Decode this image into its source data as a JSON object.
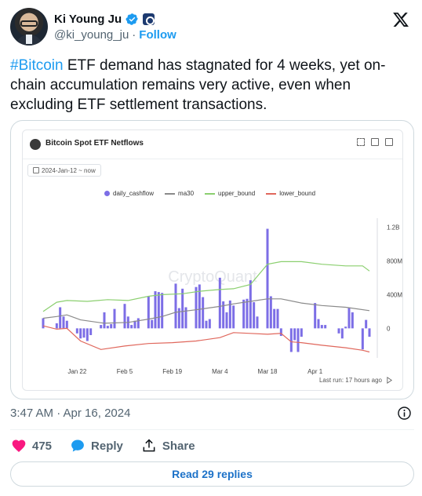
{
  "author": {
    "name": "Ki Young Ju",
    "handle": "@ki_young_ju",
    "separator": "·",
    "follow_label": "Follow"
  },
  "tweet": {
    "hashtag": "#Bitcoin",
    "text": " ETF demand has stagnated for 4 weeks, yet on-chain accumulation remains very active, even when excluding ETF settlement transactions."
  },
  "chart_card": {
    "title": "Bitcoin Spot ETF Netflows",
    "date_range": "2024-Jan-12 ~ now",
    "watermark": "CryptoQuant",
    "last_run": "Last run: 17 hours ago"
  },
  "chart_data": {
    "type": "bar",
    "title": "Bitcoin Spot ETF Netflows",
    "x_ticks": [
      "Jan 22",
      "Feb 5",
      "Feb 19",
      "Mar 4",
      "Mar 18",
      "Apr 1"
    ],
    "y_ticks": [
      "1.2B",
      "800M",
      "400M",
      "0"
    ],
    "ylim": [
      -350000000,
      1250000000
    ],
    "legend_position": "top",
    "colors": {
      "daily_cashflow": "#7c6ee6",
      "ma30": "#8a8a8a",
      "upper_bound": "#8bcf6f",
      "lower_bound": "#e0675c"
    },
    "series": [
      {
        "name": "daily_cashflow",
        "kind": "bar",
        "points": [
          [
            "2024-01-12",
            120000000
          ],
          [
            "2024-01-16",
            60000000
          ],
          [
            "2024-01-17",
            250000000
          ],
          [
            "2024-01-18",
            140000000
          ],
          [
            "2024-01-19",
            90000000
          ],
          [
            "2024-01-22",
            -60000000
          ],
          [
            "2024-01-23",
            -120000000
          ],
          [
            "2024-01-24",
            -110000000
          ],
          [
            "2024-01-25",
            -150000000
          ],
          [
            "2024-01-26",
            -80000000
          ],
          [
            "2024-01-29",
            40000000
          ],
          [
            "2024-01-30",
            190000000
          ],
          [
            "2024-01-31",
            30000000
          ],
          [
            "2024-02-01",
            50000000
          ],
          [
            "2024-02-02",
            230000000
          ],
          [
            "2024-02-05",
            290000000
          ],
          [
            "2024-02-06",
            140000000
          ],
          [
            "2024-02-07",
            40000000
          ],
          [
            "2024-02-08",
            90000000
          ],
          [
            "2024-02-09",
            120000000
          ],
          [
            "2024-02-12",
            380000000
          ],
          [
            "2024-02-13",
            100000000
          ],
          [
            "2024-02-14",
            440000000
          ],
          [
            "2024-02-15",
            430000000
          ],
          [
            "2024-02-16",
            420000000
          ],
          [
            "2024-02-20",
            530000000
          ],
          [
            "2024-02-21",
            240000000
          ],
          [
            "2024-02-22",
            470000000
          ],
          [
            "2024-02-23",
            250000000
          ],
          [
            "2024-02-26",
            490000000
          ],
          [
            "2024-02-27",
            520000000
          ],
          [
            "2024-02-28",
            370000000
          ],
          [
            "2024-02-29",
            90000000
          ],
          [
            "2024-03-01",
            110000000
          ],
          [
            "2024-03-04",
            600000000
          ],
          [
            "2024-03-05",
            320000000
          ],
          [
            "2024-03-06",
            190000000
          ],
          [
            "2024-03-07",
            330000000
          ],
          [
            "2024-03-08",
            270000000
          ],
          [
            "2024-03-11",
            340000000
          ],
          [
            "2024-03-12",
            350000000
          ],
          [
            "2024-03-13",
            570000000
          ],
          [
            "2024-03-14",
            310000000
          ],
          [
            "2024-03-15",
            140000000
          ],
          [
            "2024-03-18",
            1180000000
          ],
          [
            "2024-03-19",
            380000000
          ],
          [
            "2024-03-20",
            230000000
          ],
          [
            "2024-03-21",
            230000000
          ],
          [
            "2024-03-22",
            -90000000
          ],
          [
            "2024-03-25",
            -280000000
          ],
          [
            "2024-03-26",
            -140000000
          ],
          [
            "2024-03-27",
            -280000000
          ],
          [
            "2024-03-28",
            -100000000
          ],
          [
            "2024-04-01",
            300000000
          ],
          [
            "2024-04-02",
            110000000
          ],
          [
            "2024-04-03",
            40000000
          ],
          [
            "2024-04-04",
            40000000
          ],
          [
            "2024-04-08",
            -60000000
          ],
          [
            "2024-04-09",
            -120000000
          ],
          [
            "2024-04-10",
            20000000
          ],
          [
            "2024-04-11",
            240000000
          ],
          [
            "2024-04-12",
            190000000
          ],
          [
            "2024-04-15",
            -250000000
          ],
          [
            "2024-04-16",
            100000000
          ],
          [
            "2024-04-17",
            -100000000
          ]
        ]
      },
      {
        "name": "ma30",
        "kind": "line",
        "points": [
          [
            "2024-01-12",
            120000000
          ],
          [
            "2024-01-16",
            140000000
          ],
          [
            "2024-01-19",
            160000000
          ],
          [
            "2024-01-23",
            100000000
          ],
          [
            "2024-01-30",
            60000000
          ],
          [
            "2024-02-06",
            70000000
          ],
          [
            "2024-02-12",
            110000000
          ],
          [
            "2024-02-16",
            140000000
          ],
          [
            "2024-02-20",
            190000000
          ],
          [
            "2024-02-26",
            220000000
          ],
          [
            "2024-03-04",
            260000000
          ],
          [
            "2024-03-08",
            290000000
          ],
          [
            "2024-03-13",
            320000000
          ],
          [
            "2024-03-18",
            350000000
          ],
          [
            "2024-03-22",
            350000000
          ],
          [
            "2024-03-28",
            300000000
          ],
          [
            "2024-04-03",
            270000000
          ],
          [
            "2024-04-10",
            250000000
          ],
          [
            "2024-04-17",
            210000000
          ]
        ]
      },
      {
        "name": "upper_bound",
        "kind": "line",
        "points": [
          [
            "2024-01-12",
            200000000
          ],
          [
            "2024-01-16",
            310000000
          ],
          [
            "2024-01-19",
            330000000
          ],
          [
            "2024-01-25",
            320000000
          ],
          [
            "2024-01-31",
            340000000
          ],
          [
            "2024-02-06",
            330000000
          ],
          [
            "2024-02-12",
            380000000
          ],
          [
            "2024-02-16",
            400000000
          ],
          [
            "2024-02-22",
            410000000
          ],
          [
            "2024-02-27",
            440000000
          ],
          [
            "2024-03-04",
            460000000
          ],
          [
            "2024-03-08",
            470000000
          ],
          [
            "2024-03-13",
            520000000
          ],
          [
            "2024-03-18",
            760000000
          ],
          [
            "2024-03-22",
            790000000
          ],
          [
            "2024-03-28",
            790000000
          ],
          [
            "2024-04-03",
            760000000
          ],
          [
            "2024-04-10",
            740000000
          ],
          [
            "2024-04-15",
            740000000
          ],
          [
            "2024-04-17",
            680000000
          ]
        ]
      },
      {
        "name": "lower_bound",
        "kind": "line",
        "points": [
          [
            "2024-01-12",
            30000000
          ],
          [
            "2024-01-16",
            -10000000
          ],
          [
            "2024-01-19",
            0
          ],
          [
            "2024-01-23",
            -150000000
          ],
          [
            "2024-01-29",
            -250000000
          ],
          [
            "2024-02-05",
            -210000000
          ],
          [
            "2024-02-12",
            -180000000
          ],
          [
            "2024-02-19",
            -170000000
          ],
          [
            "2024-02-26",
            -150000000
          ],
          [
            "2024-03-04",
            -110000000
          ],
          [
            "2024-03-08",
            -50000000
          ],
          [
            "2024-03-13",
            -60000000
          ],
          [
            "2024-03-18",
            -70000000
          ],
          [
            "2024-03-22",
            -60000000
          ],
          [
            "2024-03-25",
            -160000000
          ],
          [
            "2024-03-28",
            -170000000
          ],
          [
            "2024-04-03",
            -200000000
          ],
          [
            "2024-04-10",
            -230000000
          ],
          [
            "2024-04-15",
            -260000000
          ],
          [
            "2024-04-17",
            -280000000
          ]
        ]
      }
    ]
  },
  "timestamp": "3:47 AM · Apr 16, 2024",
  "actions": {
    "likes": "475",
    "reply_label": "Reply",
    "share_label": "Share"
  },
  "read_replies": "Read 29 replies"
}
